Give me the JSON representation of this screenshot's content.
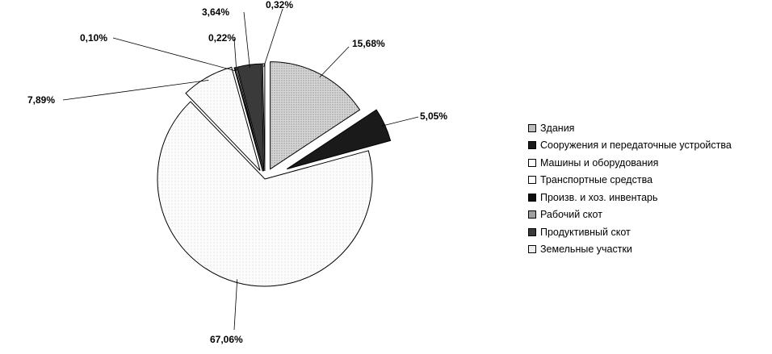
{
  "chart_data": {
    "type": "pie",
    "title": "",
    "exploded": true,
    "legend_position": "right",
    "series": [
      {
        "values": [
          15.68,
          5.05,
          67.06,
          7.89,
          0.1,
          0.22,
          3.64,
          0.32
        ],
        "labels": [
          "15,68%",
          "5,05%",
          "67,06%",
          "7,89%",
          "0,10%",
          "0,22%",
          "3,64%",
          "0,32%"
        ]
      }
    ],
    "categories": [
      "Здания",
      "Сооружения и передаточные устройства",
      "Машины и оборудования",
      "Транспортные средства",
      "Произв. и хоз. инвентарь",
      "Рабочий скот",
      "Продуктивный скот",
      "Земельные участки"
    ],
    "colors": [
      "#c2c2c2",
      "#1a1a1a",
      "#f7f7f7",
      "#fbfbfb",
      "#0d0d0d",
      "#9a9a9a",
      "#3a3a3a",
      "#ececec"
    ]
  }
}
